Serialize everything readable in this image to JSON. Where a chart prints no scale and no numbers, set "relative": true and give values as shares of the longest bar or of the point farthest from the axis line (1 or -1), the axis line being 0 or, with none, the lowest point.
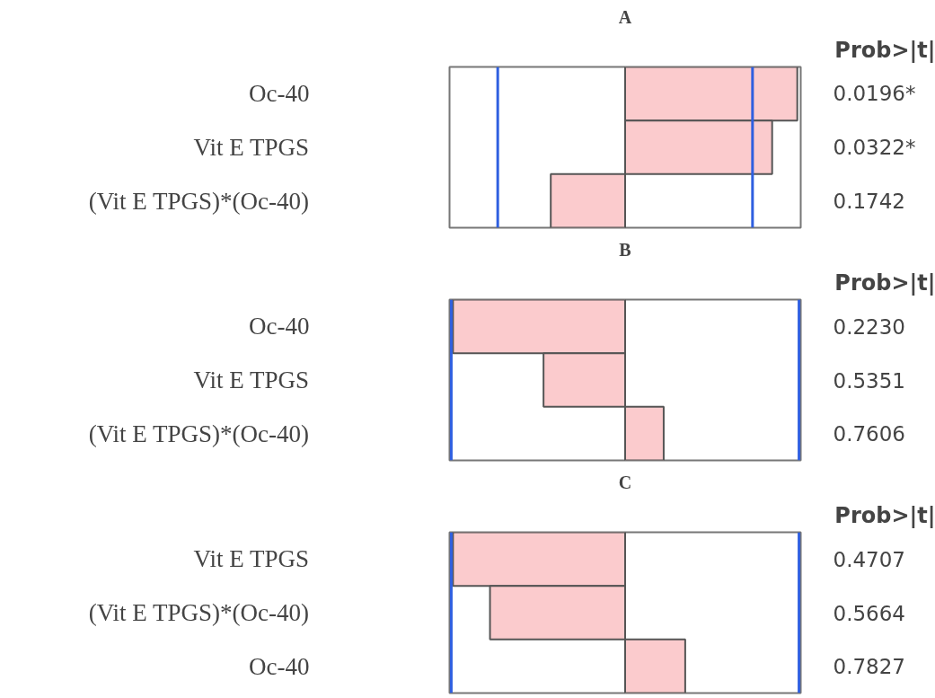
{
  "chart_data": [
    {
      "type": "bar",
      "title": "A",
      "orientation": "horizontal",
      "relative": true,
      "color": "#fbcbcd",
      "categories": [
        "Oc-40",
        "Vit E TPGS",
        "(Vit E TPGS)*(Oc-40)"
      ],
      "values": [
        1,
        0.854,
        -0.432
      ],
      "ref_lines": [
        {
          "axis": "x",
          "value": -0.74,
          "color": "#2f5fe0"
        },
        {
          "axis": "x",
          "value": 0.74,
          "color": "#2f5fe0"
        }
      ],
      "annotations": [
        "Prob>|t|",
        "0.0196*",
        "0.0322*",
        "0.1742"
      ]
    },
    {
      "type": "bar",
      "title": "B",
      "orientation": "horizontal",
      "relative": true,
      "color": "#fbcbcd",
      "categories": [
        "Oc-40",
        "Vit E TPGS",
        "(Vit E TPGS)*(Oc-40)"
      ],
      "values": [
        -1,
        -0.474,
        0.224
      ],
      "ref_lines": [
        {
          "axis": "x",
          "value": -1.01,
          "color": "#2f5fe0"
        },
        {
          "axis": "x",
          "value": 1.01,
          "color": "#2f5fe0"
        }
      ],
      "annotations": [
        "Prob>|t|",
        "0.2230",
        "0.5351",
        "0.7606"
      ]
    },
    {
      "type": "bar",
      "title": "C",
      "orientation": "horizontal",
      "relative": true,
      "color": "#fbcbcd",
      "categories": [
        "Vit E TPGS",
        "(Vit E TPGS)*(Oc-40)",
        "Oc-40"
      ],
      "values": [
        -1,
        -0.785,
        0.349
      ],
      "ref_lines": [
        {
          "axis": "x",
          "value": -1.01,
          "color": "#2f5fe0"
        },
        {
          "axis": "x",
          "value": 1.01,
          "color": "#2f5fe0"
        }
      ],
      "annotations": [
        "Prob>|t|",
        "0.4707",
        "0.5664",
        "0.7827"
      ]
    }
  ]
}
